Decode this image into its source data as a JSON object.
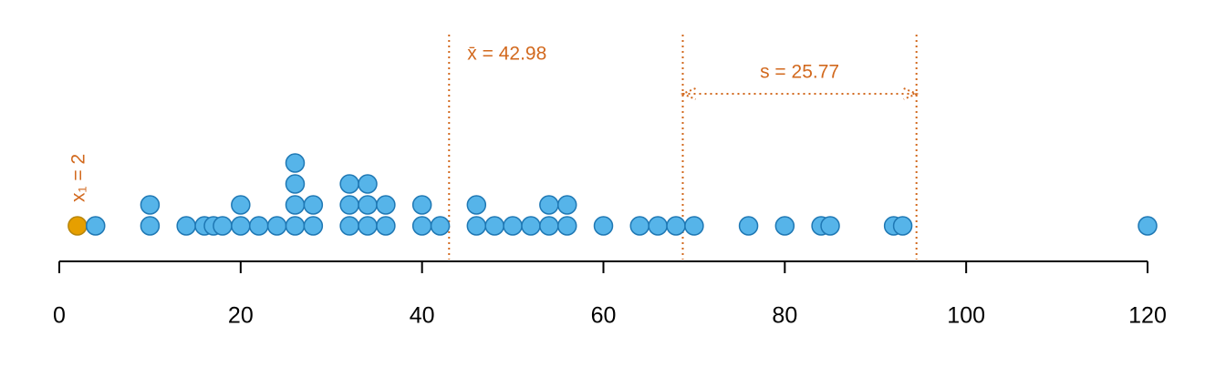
{
  "chart_data": {
    "type": "dotplot",
    "values": [
      2,
      4,
      10,
      10,
      14,
      16,
      17,
      18,
      20,
      20,
      22,
      24,
      26,
      26,
      26,
      26,
      28,
      28,
      32,
      32,
      32,
      34,
      34,
      34,
      36,
      36,
      40,
      40,
      42,
      46,
      46,
      48,
      50,
      52,
      54,
      54,
      56,
      56,
      60,
      64,
      66,
      68,
      70,
      76,
      80,
      84,
      85,
      92,
      93,
      120
    ],
    "color": "#56B4E9",
    "stroke": "#1F78B4",
    "highlight_color": "#E69F00",
    "annotation_color": "#D2691E",
    "first_point": {
      "label": "x₁ = 2",
      "value": 2
    },
    "mean": {
      "label": "x̄ = 42.98",
      "value": 42.98
    },
    "sd": {
      "label": "s = 25.77",
      "value": 25.77
    },
    "xlim": [
      0,
      120
    ],
    "xticks": [
      0,
      20,
      40,
      60,
      80,
      100,
      120
    ]
  }
}
